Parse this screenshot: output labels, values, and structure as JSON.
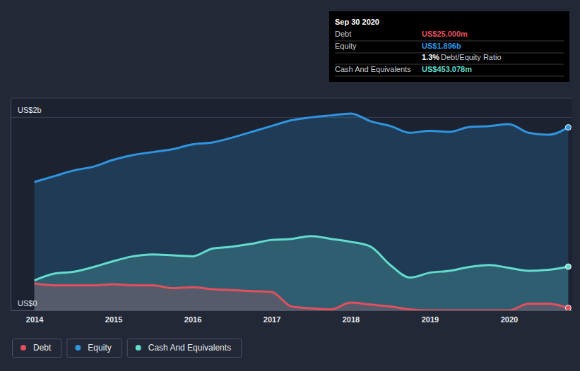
{
  "chart_data": {
    "type": "area",
    "x": [
      2014,
      2014.25,
      2014.5,
      2014.75,
      2015,
      2015.25,
      2015.5,
      2015.75,
      2016,
      2016.25,
      2016.5,
      2016.75,
      2017,
      2017.25,
      2017.5,
      2017.75,
      2018,
      2018.25,
      2018.5,
      2018.75,
      2019,
      2019.25,
      2019.5,
      2019.75,
      2020,
      2020.25,
      2020.5,
      2020.75
    ],
    "series": [
      {
        "name": "Equity",
        "color": "#2f95e0",
        "values": [
          1.33,
          1.39,
          1.45,
          1.49,
          1.56,
          1.61,
          1.64,
          1.67,
          1.72,
          1.74,
          1.79,
          1.85,
          1.91,
          1.97,
          2.0,
          2.02,
          2.04,
          1.96,
          1.91,
          1.84,
          1.86,
          1.85,
          1.9,
          1.91,
          1.93,
          1.84,
          1.82,
          1.896
        ]
      },
      {
        "name": "Cash And Equivalents",
        "color": "#62dccd",
        "values": [
          0.31,
          0.38,
          0.4,
          0.45,
          0.51,
          0.56,
          0.58,
          0.57,
          0.56,
          0.64,
          0.66,
          0.69,
          0.73,
          0.74,
          0.77,
          0.74,
          0.71,
          0.66,
          0.47,
          0.34,
          0.39,
          0.41,
          0.45,
          0.47,
          0.44,
          0.41,
          0.42,
          0.453078
        ]
      },
      {
        "name": "Debt",
        "color": "#e2505d",
        "values": [
          0.28,
          0.26,
          0.26,
          0.26,
          0.27,
          0.26,
          0.26,
          0.23,
          0.24,
          0.22,
          0.21,
          0.2,
          0.19,
          0.04,
          0.02,
          0.01,
          0.08,
          0.06,
          0.04,
          0.01,
          0,
          0,
          0,
          0,
          0,
          0.07,
          0.07,
          0.025
        ]
      }
    ],
    "xlim": [
      2013.7,
      2020.8
    ],
    "xticks": [
      2014,
      2015,
      2016,
      2017,
      2018,
      2019,
      2020
    ],
    "ylim": [
      0,
      2.2
    ],
    "yticks": [
      {
        "value": 0,
        "label": "US$0"
      },
      {
        "value": 2,
        "label": "US$2b"
      }
    ],
    "grid": true,
    "legend": "bottom-left",
    "annotations": {
      "title": "Sep 30 2020",
      "rows": [
        {
          "label": "Debt",
          "value": "US$25.000m",
          "color": "#e2505d"
        },
        {
          "label": "Equity",
          "value": "US$1.896b",
          "color": "#2f95e0"
        },
        {
          "label": "Debt/Equity Ratio",
          "value": "1.3%",
          "color": "#ffffff"
        },
        {
          "label": "Cash And Equivalents",
          "value": "US$453.078m",
          "color": "#62dccd"
        }
      ]
    }
  }
}
